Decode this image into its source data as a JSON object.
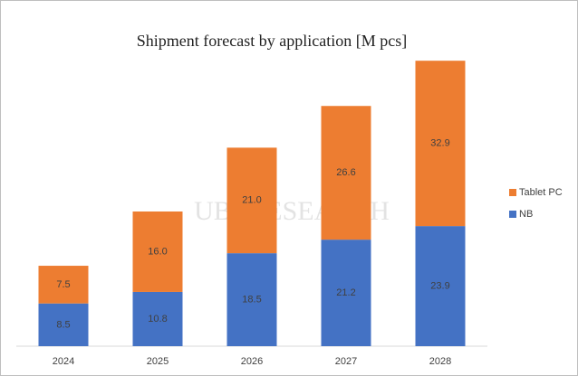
{
  "chart_data": {
    "type": "stacked-bar",
    "title": "Shipment forecast  by application  [M pcs]",
    "categories": [
      "2024",
      "2025",
      "2026",
      "2027",
      "2028"
    ],
    "series": [
      {
        "name": "NB",
        "color": "#4472c4",
        "values": [
          8.5,
          10.8,
          18.5,
          21.2,
          23.9
        ],
        "value_labels": [
          "8.5",
          "10.8",
          "18.5",
          "21.2",
          "23.9"
        ]
      },
      {
        "name": "Tablet PC",
        "color": "#ed7d31",
        "values": [
          7.5,
          16.0,
          21.0,
          26.6,
          32.9
        ],
        "value_labels": [
          "7.5",
          "16.0",
          "21.0",
          "26.6",
          "32.9"
        ]
      }
    ],
    "legend": "right",
    "watermark": "UBI RESEARCH"
  }
}
